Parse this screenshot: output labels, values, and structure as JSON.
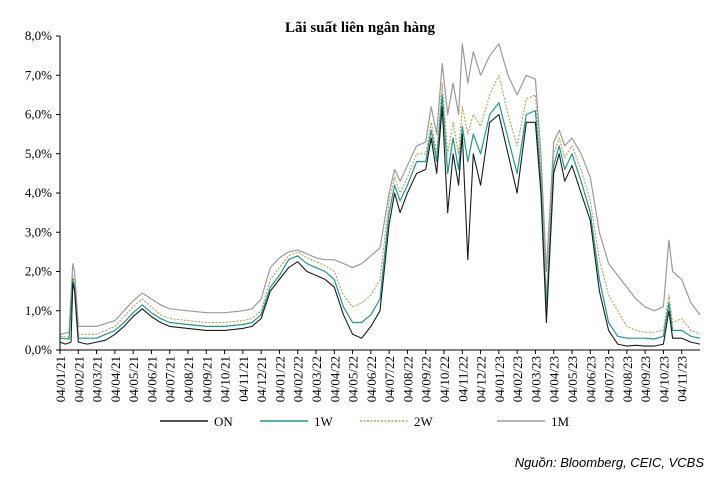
{
  "chart_data": {
    "type": "line",
    "title": "Lãi suất liên ngân hàng",
    "source": "Nguồn: Bloomberg, CEIC, VCBS",
    "y_tick_labels": [
      "0,0%",
      "1,0%",
      "2,0%",
      "3,0%",
      "4,0%",
      "5,0%",
      "6,0%",
      "7,0%",
      "8,0%"
    ],
    "ylim": [
      0,
      8
    ],
    "x_tick_labels": [
      "04/01/21",
      "04/02/21",
      "04/03/21",
      "04/04/21",
      "04/05/21",
      "04/06/21",
      "04/07/21",
      "04/08/21",
      "04/09/21",
      "04/10/21",
      "04/11/21",
      "04/12/21",
      "04/01/22",
      "04/02/22",
      "04/03/22",
      "04/04/22",
      "04/05/22",
      "04/06/22",
      "04/07/22",
      "04/08/22",
      "04/09/22",
      "04/10/22",
      "04/11/22",
      "04/12/22",
      "04/01/23",
      "04/02/23",
      "04/03/23",
      "04/04/23",
      "04/05/23",
      "04/06/23",
      "04/07/23",
      "04/08/23",
      "04/09/23",
      "04/10/23",
      "04/11/23"
    ],
    "grid": false,
    "legend_position": "bottom",
    "series": [
      {
        "name": "ON",
        "color": "#1a1a1a",
        "dash": "",
        "width": 1.1,
        "points": [
          [
            0,
            0.2
          ],
          [
            0.3,
            0.15
          ],
          [
            0.6,
            0.2
          ],
          [
            0.7,
            1.7
          ],
          [
            0.8,
            1.5
          ],
          [
            1.0,
            0.2
          ],
          [
            1.5,
            0.15
          ],
          [
            2.0,
            0.2
          ],
          [
            2.5,
            0.25
          ],
          [
            3.0,
            0.4
          ],
          [
            3.5,
            0.6
          ],
          [
            4.0,
            0.85
          ],
          [
            4.5,
            1.05
          ],
          [
            5.0,
            0.85
          ],
          [
            5.5,
            0.7
          ],
          [
            6.0,
            0.6
          ],
          [
            7.0,
            0.55
          ],
          [
            8.0,
            0.5
          ],
          [
            9.0,
            0.5
          ],
          [
            10.0,
            0.55
          ],
          [
            10.5,
            0.6
          ],
          [
            11.0,
            0.8
          ],
          [
            11.5,
            1.5
          ],
          [
            12.0,
            1.8
          ],
          [
            12.5,
            2.1
          ],
          [
            13.0,
            2.25
          ],
          [
            13.5,
            2.0
          ],
          [
            14.0,
            1.9
          ],
          [
            14.5,
            1.8
          ],
          [
            15.0,
            1.6
          ],
          [
            15.5,
            0.9
          ],
          [
            16.0,
            0.4
          ],
          [
            16.5,
            0.3
          ],
          [
            17.0,
            0.6
          ],
          [
            17.5,
            1.0
          ],
          [
            18.0,
            3.2
          ],
          [
            18.3,
            4.0
          ],
          [
            18.6,
            3.5
          ],
          [
            19.0,
            4.0
          ],
          [
            19.5,
            4.5
          ],
          [
            20.0,
            4.6
          ],
          [
            20.3,
            5.4
          ],
          [
            20.6,
            4.5
          ],
          [
            20.9,
            6.2
          ],
          [
            21.2,
            3.5
          ],
          [
            21.5,
            5.0
          ],
          [
            21.8,
            4.2
          ],
          [
            22.0,
            5.5
          ],
          [
            22.3,
            2.3
          ],
          [
            22.6,
            5.0
          ],
          [
            23.0,
            4.2
          ],
          [
            23.5,
            5.8
          ],
          [
            24.0,
            6.0
          ],
          [
            24.5,
            5.0
          ],
          [
            25.0,
            4.0
          ],
          [
            25.5,
            5.8
          ],
          [
            26.0,
            5.8
          ],
          [
            26.3,
            4.0
          ],
          [
            26.6,
            0.7
          ],
          [
            27.0,
            4.5
          ],
          [
            27.3,
            5.0
          ],
          [
            27.6,
            4.3
          ],
          [
            28.0,
            4.7
          ],
          [
            28.5,
            4.0
          ],
          [
            29.0,
            3.3
          ],
          [
            29.5,
            1.5
          ],
          [
            30.0,
            0.5
          ],
          [
            30.5,
            0.15
          ],
          [
            31.0,
            0.1
          ],
          [
            31.5,
            0.12
          ],
          [
            32.0,
            0.1
          ],
          [
            32.5,
            0.1
          ],
          [
            33.0,
            0.15
          ],
          [
            33.3,
            1.0
          ],
          [
            33.5,
            0.3
          ],
          [
            34.0,
            0.3
          ],
          [
            34.5,
            0.2
          ],
          [
            35.0,
            0.15
          ]
        ]
      },
      {
        "name": "1W",
        "color": "#1a9a8e",
        "dash": "",
        "width": 1.2,
        "points": [
          [
            0,
            0.3
          ],
          [
            0.5,
            0.28
          ],
          [
            0.7,
            1.8
          ],
          [
            0.8,
            1.6
          ],
          [
            1.0,
            0.3
          ],
          [
            2.0,
            0.3
          ],
          [
            3.0,
            0.5
          ],
          [
            3.5,
            0.7
          ],
          [
            4.0,
            0.95
          ],
          [
            4.5,
            1.15
          ],
          [
            5.0,
            0.95
          ],
          [
            5.5,
            0.8
          ],
          [
            6.0,
            0.7
          ],
          [
            7.0,
            0.65
          ],
          [
            8.0,
            0.6
          ],
          [
            9.0,
            0.6
          ],
          [
            10.0,
            0.65
          ],
          [
            10.5,
            0.7
          ],
          [
            11.0,
            0.9
          ],
          [
            11.5,
            1.6
          ],
          [
            12.0,
            1.9
          ],
          [
            12.5,
            2.3
          ],
          [
            13.0,
            2.4
          ],
          [
            13.5,
            2.2
          ],
          [
            14.0,
            2.1
          ],
          [
            14.5,
            2.0
          ],
          [
            15.0,
            1.8
          ],
          [
            15.5,
            1.1
          ],
          [
            16.0,
            0.7
          ],
          [
            16.5,
            0.7
          ],
          [
            17.0,
            0.9
          ],
          [
            17.5,
            1.3
          ],
          [
            18.0,
            3.5
          ],
          [
            18.3,
            4.2
          ],
          [
            18.6,
            3.8
          ],
          [
            19.0,
            4.2
          ],
          [
            19.5,
            4.8
          ],
          [
            20.0,
            4.8
          ],
          [
            20.3,
            5.6
          ],
          [
            20.6,
            4.8
          ],
          [
            20.9,
            6.5
          ],
          [
            21.2,
            4.5
          ],
          [
            21.5,
            5.4
          ],
          [
            21.8,
            4.6
          ],
          [
            22.0,
            5.7
          ],
          [
            22.3,
            4.8
          ],
          [
            22.6,
            5.5
          ],
          [
            23.0,
            5.0
          ],
          [
            23.5,
            6.0
          ],
          [
            24.0,
            6.3
          ],
          [
            24.5,
            5.4
          ],
          [
            25.0,
            4.5
          ],
          [
            25.5,
            6.0
          ],
          [
            26.0,
            6.1
          ],
          [
            26.3,
            4.3
          ],
          [
            26.6,
            1.0
          ],
          [
            27.0,
            4.7
          ],
          [
            27.3,
            5.2
          ],
          [
            27.6,
            4.6
          ],
          [
            28.0,
            5.0
          ],
          [
            28.5,
            4.3
          ],
          [
            29.0,
            3.5
          ],
          [
            29.5,
            1.8
          ],
          [
            30.0,
            0.7
          ],
          [
            30.5,
            0.35
          ],
          [
            31.0,
            0.3
          ],
          [
            31.5,
            0.3
          ],
          [
            32.0,
            0.3
          ],
          [
            32.5,
            0.28
          ],
          [
            33.0,
            0.35
          ],
          [
            33.3,
            1.2
          ],
          [
            33.5,
            0.5
          ],
          [
            34.0,
            0.5
          ],
          [
            34.5,
            0.35
          ],
          [
            35.0,
            0.3
          ]
        ]
      },
      {
        "name": "2W",
        "color": "#b5a04a",
        "dash": "2,1.5",
        "width": 1.1,
        "points": [
          [
            0,
            0.35
          ],
          [
            0.5,
            0.33
          ],
          [
            0.7,
            1.9
          ],
          [
            0.8,
            1.7
          ],
          [
            1.0,
            0.4
          ],
          [
            2.0,
            0.4
          ],
          [
            3.0,
            0.6
          ],
          [
            3.5,
            0.85
          ],
          [
            4.0,
            1.1
          ],
          [
            4.5,
            1.3
          ],
          [
            5.0,
            1.1
          ],
          [
            5.5,
            0.9
          ],
          [
            6.0,
            0.8
          ],
          [
            7.0,
            0.75
          ],
          [
            8.0,
            0.7
          ],
          [
            9.0,
            0.7
          ],
          [
            10.0,
            0.75
          ],
          [
            10.5,
            0.8
          ],
          [
            11.0,
            1.0
          ],
          [
            11.5,
            1.8
          ],
          [
            12.0,
            2.1
          ],
          [
            12.5,
            2.4
          ],
          [
            13.0,
            2.5
          ],
          [
            13.5,
            2.35
          ],
          [
            14.0,
            2.25
          ],
          [
            14.5,
            2.15
          ],
          [
            15.0,
            2.0
          ],
          [
            15.5,
            1.4
          ],
          [
            16.0,
            1.1
          ],
          [
            16.5,
            1.2
          ],
          [
            17.0,
            1.4
          ],
          [
            17.5,
            1.8
          ],
          [
            18.0,
            3.8
          ],
          [
            18.3,
            4.4
          ],
          [
            18.6,
            4.0
          ],
          [
            19.0,
            4.4
          ],
          [
            19.5,
            5.0
          ],
          [
            20.0,
            5.0
          ],
          [
            20.3,
            5.8
          ],
          [
            20.6,
            5.0
          ],
          [
            20.9,
            6.8
          ],
          [
            21.2,
            5.0
          ],
          [
            21.5,
            5.8
          ],
          [
            21.8,
            5.0
          ],
          [
            22.0,
            6.2
          ],
          [
            22.3,
            5.5
          ],
          [
            22.6,
            6.0
          ],
          [
            23.0,
            5.7
          ],
          [
            23.5,
            6.5
          ],
          [
            24.0,
            7.0
          ],
          [
            24.5,
            6.0
          ],
          [
            25.0,
            5.2
          ],
          [
            25.5,
            6.4
          ],
          [
            26.0,
            6.5
          ],
          [
            26.3,
            4.6
          ],
          [
            26.6,
            1.4
          ],
          [
            27.0,
            5.0
          ],
          [
            27.3,
            5.4
          ],
          [
            27.6,
            4.9
          ],
          [
            28.0,
            5.2
          ],
          [
            28.5,
            4.6
          ],
          [
            29.0,
            3.8
          ],
          [
            29.5,
            2.3
          ],
          [
            30.0,
            1.4
          ],
          [
            30.5,
            1.0
          ],
          [
            31.0,
            0.6
          ],
          [
            31.5,
            0.5
          ],
          [
            32.0,
            0.45
          ],
          [
            32.5,
            0.45
          ],
          [
            33.0,
            0.5
          ],
          [
            33.3,
            1.4
          ],
          [
            33.5,
            0.7
          ],
          [
            34.0,
            0.8
          ],
          [
            34.5,
            0.5
          ],
          [
            35.0,
            0.4
          ]
        ]
      },
      {
        "name": "1M",
        "color": "#9a9a9a",
        "dash": "",
        "width": 1.2,
        "points": [
          [
            0,
            0.4
          ],
          [
            0.5,
            0.45
          ],
          [
            0.7,
            2.2
          ],
          [
            0.8,
            2.0
          ],
          [
            1.0,
            0.6
          ],
          [
            2.0,
            0.6
          ],
          [
            3.0,
            0.75
          ],
          [
            3.5,
            1.0
          ],
          [
            4.0,
            1.25
          ],
          [
            4.5,
            1.45
          ],
          [
            5.0,
            1.3
          ],
          [
            5.5,
            1.15
          ],
          [
            6.0,
            1.05
          ],
          [
            7.0,
            1.0
          ],
          [
            8.0,
            0.95
          ],
          [
            9.0,
            0.95
          ],
          [
            10.0,
            1.0
          ],
          [
            10.5,
            1.05
          ],
          [
            11.0,
            1.3
          ],
          [
            11.5,
            2.1
          ],
          [
            12.0,
            2.35
          ],
          [
            12.5,
            2.5
          ],
          [
            13.0,
            2.55
          ],
          [
            13.5,
            2.45
          ],
          [
            14.0,
            2.35
          ],
          [
            14.5,
            2.3
          ],
          [
            15.0,
            2.3
          ],
          [
            15.5,
            2.2
          ],
          [
            16.0,
            2.1
          ],
          [
            16.5,
            2.2
          ],
          [
            17.0,
            2.4
          ],
          [
            17.5,
            2.6
          ],
          [
            18.0,
            4.0
          ],
          [
            18.3,
            4.6
          ],
          [
            18.6,
            4.3
          ],
          [
            19.0,
            4.7
          ],
          [
            19.5,
            5.2
          ],
          [
            20.0,
            5.3
          ],
          [
            20.3,
            6.2
          ],
          [
            20.6,
            5.5
          ],
          [
            20.9,
            7.3
          ],
          [
            21.2,
            6.0
          ],
          [
            21.5,
            6.8
          ],
          [
            21.8,
            6.0
          ],
          [
            22.0,
            7.8
          ],
          [
            22.3,
            6.8
          ],
          [
            22.6,
            7.6
          ],
          [
            23.0,
            7.0
          ],
          [
            23.5,
            7.5
          ],
          [
            24.0,
            7.8
          ],
          [
            24.5,
            7.0
          ],
          [
            25.0,
            6.5
          ],
          [
            25.5,
            7.0
          ],
          [
            26.0,
            6.9
          ],
          [
            26.3,
            5.0
          ],
          [
            26.6,
            2.0
          ],
          [
            27.0,
            5.3
          ],
          [
            27.3,
            5.6
          ],
          [
            27.6,
            5.2
          ],
          [
            28.0,
            5.4
          ],
          [
            28.5,
            5.0
          ],
          [
            29.0,
            4.4
          ],
          [
            29.5,
            3.0
          ],
          [
            30.0,
            2.2
          ],
          [
            30.5,
            1.9
          ],
          [
            31.0,
            1.6
          ],
          [
            31.5,
            1.3
          ],
          [
            32.0,
            1.1
          ],
          [
            32.5,
            1.0
          ],
          [
            33.0,
            1.1
          ],
          [
            33.3,
            2.8
          ],
          [
            33.5,
            2.0
          ],
          [
            34.0,
            1.8
          ],
          [
            34.5,
            1.2
          ],
          [
            35.0,
            0.9
          ]
        ]
      }
    ]
  }
}
